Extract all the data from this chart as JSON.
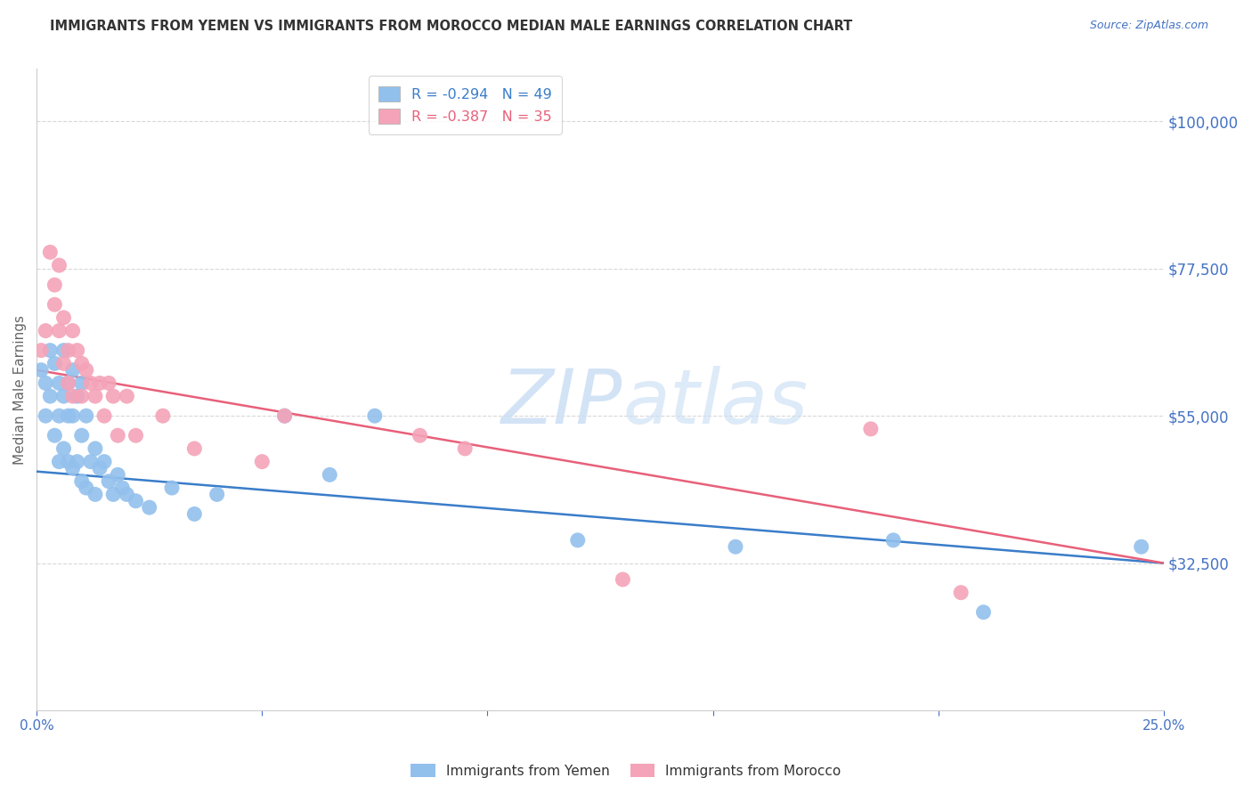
{
  "title": "IMMIGRANTS FROM YEMEN VS IMMIGRANTS FROM MOROCCO MEDIAN MALE EARNINGS CORRELATION CHART",
  "source": "Source: ZipAtlas.com",
  "ylabel": "Median Male Earnings",
  "xlim": [
    0.0,
    0.25
  ],
  "ylim": [
    10000,
    108000
  ],
  "yticks": [
    32500,
    55000,
    77500,
    100000
  ],
  "ytick_labels": [
    "$32,500",
    "$55,000",
    "$77,500",
    "$100,000"
  ],
  "xticks": [
    0.0,
    0.05,
    0.1,
    0.15,
    0.2,
    0.25
  ],
  "xtick_labels": [
    "0.0%",
    "",
    "",
    "",
    "",
    "25.0%"
  ],
  "background_color": "#ffffff",
  "grid_color": "#d8d8d8",
  "watermark_zip": "ZIP",
  "watermark_atlas": "atlas",
  "legend_line1": "R = -0.294   N = 49",
  "legend_line2": "R = -0.387   N = 35",
  "yemen_color": "#92C0ED",
  "morocco_color": "#F4A3B8",
  "yemen_line_color": "#3A7DC9",
  "morocco_line_color": "#E8607A",
  "label_color": "#4472C4",
  "axis_color": "#cccccc",
  "yemen_line_x0": 0.0,
  "yemen_line_y0": 46500,
  "yemen_line_x1": 0.25,
  "yemen_line_y1": 32500,
  "morocco_line_x0": 0.0,
  "morocco_line_y0": 62000,
  "morocco_line_x1": 0.25,
  "morocco_line_y1": 32500,
  "yemen_x": [
    0.001,
    0.002,
    0.002,
    0.003,
    0.003,
    0.004,
    0.004,
    0.005,
    0.005,
    0.005,
    0.006,
    0.006,
    0.006,
    0.007,
    0.007,
    0.007,
    0.008,
    0.008,
    0.008,
    0.009,
    0.009,
    0.01,
    0.01,
    0.01,
    0.011,
    0.011,
    0.012,
    0.013,
    0.013,
    0.014,
    0.015,
    0.016,
    0.017,
    0.018,
    0.019,
    0.02,
    0.022,
    0.025,
    0.03,
    0.035,
    0.04,
    0.055,
    0.065,
    0.075,
    0.12,
    0.155,
    0.19,
    0.21,
    0.245
  ],
  "yemen_y": [
    62000,
    60000,
    55000,
    65000,
    58000,
    63000,
    52000,
    60000,
    55000,
    48000,
    65000,
    58000,
    50000,
    60000,
    55000,
    48000,
    62000,
    55000,
    47000,
    58000,
    48000,
    60000,
    52000,
    45000,
    55000,
    44000,
    48000,
    50000,
    43000,
    47000,
    48000,
    45000,
    43000,
    46000,
    44000,
    43000,
    42000,
    41000,
    44000,
    40000,
    43000,
    55000,
    46000,
    55000,
    36000,
    35000,
    36000,
    25000,
    35000
  ],
  "morocco_x": [
    0.001,
    0.002,
    0.003,
    0.004,
    0.004,
    0.005,
    0.005,
    0.006,
    0.006,
    0.007,
    0.007,
    0.008,
    0.008,
    0.009,
    0.01,
    0.01,
    0.011,
    0.012,
    0.013,
    0.014,
    0.015,
    0.016,
    0.017,
    0.018,
    0.02,
    0.022,
    0.028,
    0.035,
    0.05,
    0.055,
    0.085,
    0.095,
    0.13,
    0.185,
    0.205
  ],
  "morocco_y": [
    65000,
    68000,
    80000,
    75000,
    72000,
    78000,
    68000,
    70000,
    63000,
    65000,
    60000,
    68000,
    58000,
    65000,
    63000,
    58000,
    62000,
    60000,
    58000,
    60000,
    55000,
    60000,
    58000,
    52000,
    58000,
    52000,
    55000,
    50000,
    48000,
    55000,
    52000,
    50000,
    30000,
    53000,
    28000
  ]
}
